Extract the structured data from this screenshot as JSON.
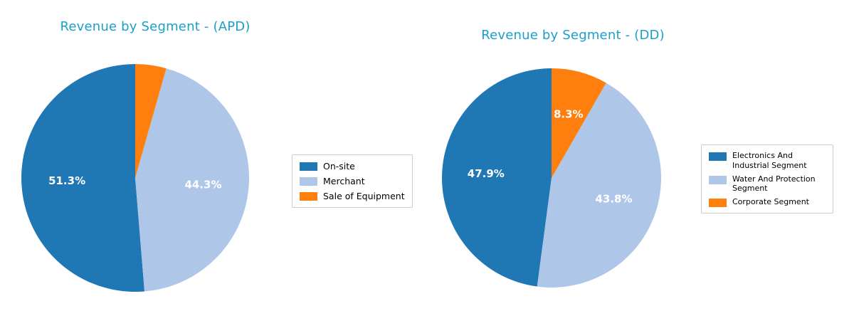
{
  "chart_data": [
    {
      "type": "pie",
      "title": "Revenue by Segment - (APD)",
      "title_color": "#1b9fca",
      "labels": [
        "On-site",
        "Merchant",
        "Sale of Equipment"
      ],
      "values": [
        51.3,
        44.3,
        4.4
      ],
      "pct_labels": [
        "51.3%",
        "44.3%",
        ""
      ],
      "colors": [
        "#1f77b4",
        "#aec7e8",
        "#ff7f0e"
      ],
      "pct_label_color": "#ffffff",
      "start_angle": 90,
      "direction": "counterclockwise",
      "legend_position": "right"
    },
    {
      "type": "pie",
      "title": "Revenue by Segment - (DD)",
      "title_color": "#1b9fca",
      "labels": [
        "Electronics And Industrial Segment",
        "Water And Protection Segment",
        "Corporate Segment"
      ],
      "values": [
        47.9,
        43.8,
        8.3
      ],
      "pct_labels": [
        "47.9%",
        "43.8%",
        "8.3%"
      ],
      "colors": [
        "#1f77b4",
        "#aec7e8",
        "#ff7f0e"
      ],
      "pct_label_color": "#ffffff",
      "start_angle": 90,
      "direction": "counterclockwise",
      "legend_position": "right"
    }
  ]
}
